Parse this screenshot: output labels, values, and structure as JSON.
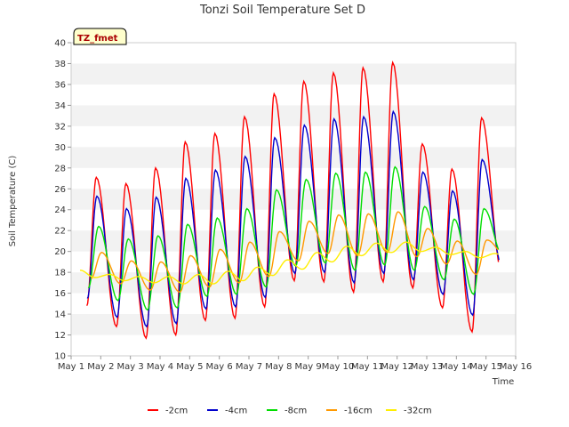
{
  "chart_data": {
    "type": "line",
    "title": "Tonzi Soil Temperature Set D",
    "xlabel": "Time",
    "ylabel": "Soil Temperature (C)",
    "annotation": "TZ_fmet",
    "xlim": [
      1,
      16
    ],
    "ylim": [
      10,
      40
    ],
    "yticks": [
      10,
      12,
      14,
      16,
      18,
      20,
      22,
      24,
      26,
      28,
      30,
      32,
      34,
      36,
      38,
      40
    ],
    "xticks": [
      1,
      2,
      3,
      4,
      5,
      6,
      7,
      8,
      9,
      10,
      11,
      12,
      13,
      14,
      15,
      16
    ],
    "xtick_labels": [
      "May 1",
      "May 2",
      "May 3",
      "May 4",
      "May 5",
      "May 6",
      "May 7",
      "May 8",
      "May 9",
      "May 10",
      "May 11",
      "May 12",
      "May 13",
      "May 14",
      "May 15",
      "May 16"
    ],
    "grid": "horizontal bands",
    "legend_position": "bottom",
    "series": [
      {
        "name": "-2cm",
        "color": "#ff0000",
        "daily_min": [
          14.8,
          12.8,
          11.7,
          12.0,
          13.4,
          13.6,
          14.7,
          17.2,
          17.1,
          16.1,
          17.1,
          16.5,
          14.6,
          12.3,
          18.0
        ],
        "daily_max": [
          27.1,
          26.5,
          28.0,
          30.5,
          31.3,
          32.9,
          35.1,
          36.3,
          37.1,
          37.6,
          38.1,
          30.3,
          27.9,
          32.8
        ]
      },
      {
        "name": "-4cm",
        "color": "#0000cc",
        "daily_min": [
          15.5,
          13.7,
          12.8,
          13.1,
          14.5,
          14.7,
          15.6,
          17.9,
          18.0,
          17.0,
          17.9,
          17.3,
          15.9,
          13.9,
          18.5
        ],
        "daily_max": [
          25.3,
          24.1,
          25.2,
          27.0,
          27.8,
          29.1,
          30.9,
          32.1,
          32.7,
          32.9,
          33.4,
          27.6,
          25.8,
          28.8
        ]
      },
      {
        "name": "-8cm",
        "color": "#00dd00",
        "daily_min": [
          16.5,
          15.3,
          14.4,
          14.6,
          15.7,
          15.9,
          16.6,
          18.6,
          18.9,
          18.2,
          18.7,
          18.2,
          17.3,
          15.9,
          19.5
        ],
        "daily_max": [
          22.4,
          21.2,
          21.5,
          22.6,
          23.2,
          24.1,
          25.9,
          26.9,
          27.5,
          27.6,
          28.1,
          24.3,
          23.1,
          24.1
        ]
      },
      {
        "name": "-16cm",
        "color": "#ff9900",
        "daily_min": [
          17.4,
          16.9,
          16.3,
          16.1,
          16.6,
          17.0,
          17.6,
          19.1,
          19.8,
          19.6,
          19.9,
          19.5,
          18.8,
          17.8,
          19.6
        ],
        "daily_max": [
          19.9,
          19.1,
          19.0,
          19.6,
          20.2,
          20.9,
          21.9,
          22.9,
          23.5,
          23.6,
          23.8,
          22.2,
          21.0,
          21.1
        ]
      },
      {
        "name": "-32cm",
        "color": "#ffee00",
        "daily_min": [
          17.5,
          17.2,
          17.0,
          16.9,
          16.9,
          17.2,
          17.7,
          18.3,
          19.0,
          19.6,
          19.9,
          20.0,
          19.7,
          19.4,
          19.3
        ],
        "daily_max": [
          18.2,
          17.8,
          17.6,
          17.6,
          17.8,
          18.1,
          18.5,
          19.2,
          19.9,
          20.5,
          20.8,
          20.9,
          20.4,
          20.0,
          19.8
        ]
      }
    ]
  }
}
